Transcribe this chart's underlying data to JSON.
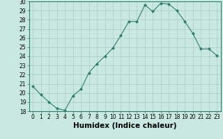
{
  "xlabel": "Humidex (Indice chaleur)",
  "x": [
    0,
    1,
    2,
    3,
    4,
    5,
    6,
    7,
    8,
    9,
    10,
    11,
    12,
    13,
    14,
    15,
    16,
    17,
    18,
    19,
    20,
    21,
    22,
    23
  ],
  "y": [
    20.7,
    19.8,
    19.0,
    18.3,
    18.1,
    19.7,
    20.4,
    22.2,
    23.2,
    24.0,
    24.9,
    26.3,
    27.8,
    27.8,
    29.6,
    28.9,
    29.8,
    29.7,
    29.0,
    27.8,
    26.5,
    24.8,
    24.8,
    24.1
  ],
  "line_color": "#2e7d6e",
  "marker": "D",
  "markersize": 2.0,
  "bg_color": "#c8e8e0",
  "grid_color": "#aaccc4",
  "ylim": [
    18,
    30
  ],
  "xlim": [
    -0.5,
    23.5
  ],
  "yticks": [
    18,
    19,
    20,
    21,
    22,
    23,
    24,
    25,
    26,
    27,
    28,
    29,
    30
  ],
  "xticks": [
    0,
    1,
    2,
    3,
    4,
    5,
    6,
    7,
    8,
    9,
    10,
    11,
    12,
    13,
    14,
    15,
    16,
    17,
    18,
    19,
    20,
    21,
    22,
    23
  ],
  "tick_fontsize": 5.5,
  "xlabel_fontsize": 7.5,
  "linewidth": 0.8
}
